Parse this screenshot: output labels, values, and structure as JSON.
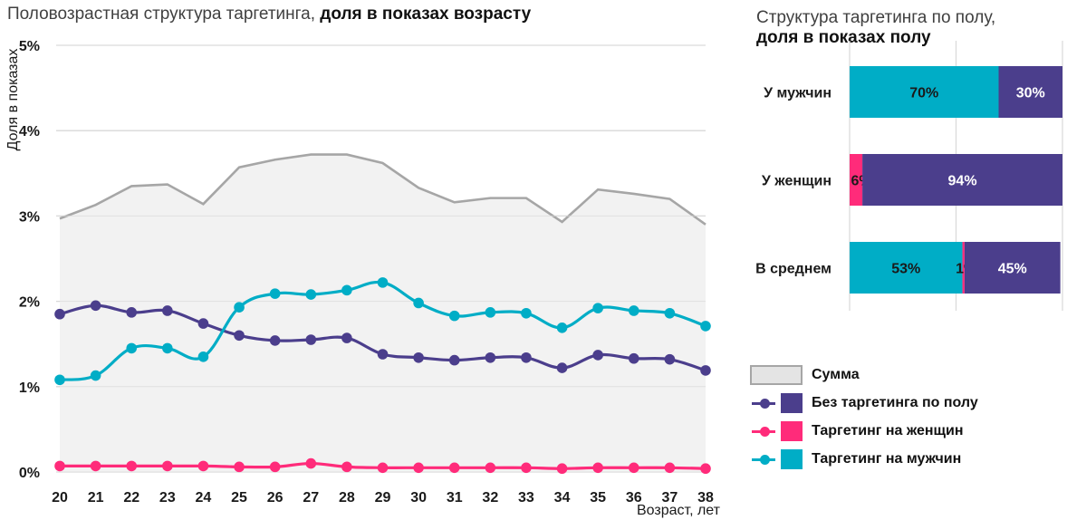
{
  "titles": {
    "left_regular": "Половозрастная структура таргетинга,",
    "left_bold": "доля в показах возрасту",
    "right_regular": "Структура таргетинга по полу,",
    "right_bold": "доля в показах полу"
  },
  "colors": {
    "sum_line": "#a6a6a6",
    "sum_fill": "#f2f2f2",
    "no_targeting": "#4b3e8c",
    "women": "#ff2b7a",
    "men": "#00adc6",
    "grid": "#d9d9d9"
  },
  "chart_data": [
    {
      "type": "line",
      "ylabel": "Доля в показах",
      "xlabel": "Возраст, лет",
      "x": [
        20,
        21,
        22,
        23,
        24,
        25,
        26,
        27,
        28,
        29,
        30,
        31,
        32,
        33,
        34,
        35,
        36,
        37,
        38
      ],
      "y_ticks": [
        "0%",
        "1%",
        "2%",
        "3%",
        "4%",
        "5%"
      ],
      "ylim": [
        0,
        5
      ],
      "grid": true,
      "series": [
        {
          "name": "Сумма",
          "style": "area",
          "values": [
            2.97,
            3.13,
            3.35,
            3.37,
            3.14,
            3.57,
            3.66,
            3.72,
            3.72,
            3.62,
            3.33,
            3.16,
            3.21,
            3.21,
            2.93,
            3.31,
            3.26,
            3.2,
            2.9
          ]
        },
        {
          "name": "Без таргетинга по полу",
          "style": "line",
          "values": [
            1.85,
            1.95,
            1.87,
            1.89,
            1.74,
            1.6,
            1.54,
            1.55,
            1.57,
            1.38,
            1.34,
            1.31,
            1.34,
            1.34,
            1.22,
            1.37,
            1.33,
            1.32,
            1.19
          ]
        },
        {
          "name": "Таргетинг на женщин",
          "style": "line",
          "values": [
            0.07,
            0.07,
            0.07,
            0.07,
            0.07,
            0.06,
            0.06,
            0.1,
            0.06,
            0.05,
            0.05,
            0.05,
            0.05,
            0.05,
            0.04,
            0.05,
            0.05,
            0.05,
            0.04
          ]
        },
        {
          "name": "Таргетинг на мужчин",
          "style": "line",
          "values": [
            1.08,
            1.13,
            1.45,
            1.45,
            1.35,
            1.93,
            2.09,
            2.08,
            2.13,
            2.22,
            1.98,
            1.83,
            1.87,
            1.86,
            1.69,
            1.92,
            1.89,
            1.86,
            1.71
          ]
        }
      ]
    },
    {
      "type": "bar",
      "stacked": true,
      "orientation": "horizontal",
      "categories": [
        "У мужчин",
        "У женщин",
        "В среднем"
      ],
      "series": [
        {
          "name": "Таргетинг на мужчин",
          "values": [
            70,
            0,
            53
          ],
          "labels": [
            "70%",
            "",
            "53%"
          ]
        },
        {
          "name": "Таргетинг на женщин",
          "values": [
            0,
            6,
            1
          ],
          "labels": [
            "",
            "6%",
            "1%"
          ]
        },
        {
          "name": "Без таргетинга по полу",
          "values": [
            30,
            94,
            45
          ],
          "labels": [
            "30%",
            "94%",
            "45%"
          ]
        }
      ],
      "xlim": [
        0,
        100
      ]
    }
  ],
  "legend": [
    {
      "label": "Сумма",
      "kind": "area"
    },
    {
      "label": "Без таргетинга по полу",
      "kind": "line",
      "color": "#4b3e8c"
    },
    {
      "label": "Таргетинг на женщин",
      "kind": "line",
      "color": "#ff2b7a"
    },
    {
      "label": "Таргетинг на мужчин",
      "kind": "line",
      "color": "#00adc6"
    }
  ]
}
